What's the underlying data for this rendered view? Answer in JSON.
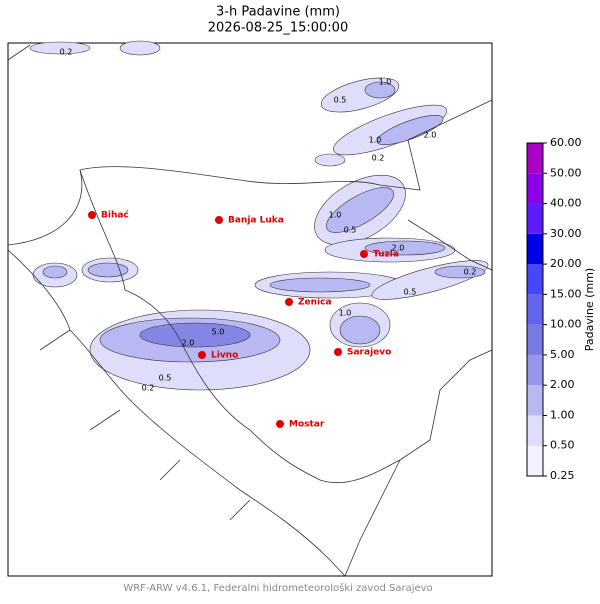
{
  "header": {
    "title": "3-h Padavine (mm)",
    "subtitle": "2026-08-25_15:00:00"
  },
  "cities": [
    {
      "label": "Bihać"
    },
    {
      "label": "Banja Luka"
    },
    {
      "label": "Tuzla"
    },
    {
      "label": "Zenica"
    },
    {
      "label": "Livno"
    },
    {
      "label": "Sarajevo"
    },
    {
      "label": "Mostar"
    }
  ],
  "contour_labels": [
    "0.2",
    "1.0",
    "0.5",
    "2.0",
    "1.0",
    "0.2",
    "5.0",
    "2.0",
    "0.5",
    "0.2",
    "1.0",
    "0.5",
    "2.0",
    "0.2",
    "1.0",
    "0.5"
  ],
  "colorbar": {
    "label": "Padavine (mm)",
    "ticks": [
      {
        "value": 0.25,
        "label": "0.25"
      },
      {
        "value": 0.5,
        "label": "0.50"
      },
      {
        "value": 1,
        "label": "1.00"
      },
      {
        "value": 2,
        "label": "2.00"
      },
      {
        "value": 5,
        "label": "5.00"
      },
      {
        "value": 10,
        "label": "10.00"
      },
      {
        "value": 15,
        "label": "15.00"
      },
      {
        "value": 20,
        "label": "20.00"
      },
      {
        "value": 30,
        "label": "30.00"
      },
      {
        "value": 40,
        "label": "40.00"
      },
      {
        "value": 50,
        "label": "50.00"
      },
      {
        "value": 60,
        "label": "60.00"
      }
    ],
    "colors": [
      "#f2f2ff",
      "#dedefa",
      "#b8b8f2",
      "#9696ea",
      "#7a7ae4",
      "#6464ee",
      "#4646fa",
      "#0000e6",
      "#5c1cff",
      "#8a00e8",
      "#a800c4"
    ]
  },
  "footer": "WRF-ARW v4.6.1, Federalni hidrometeorološki zavod Sarajevo"
}
